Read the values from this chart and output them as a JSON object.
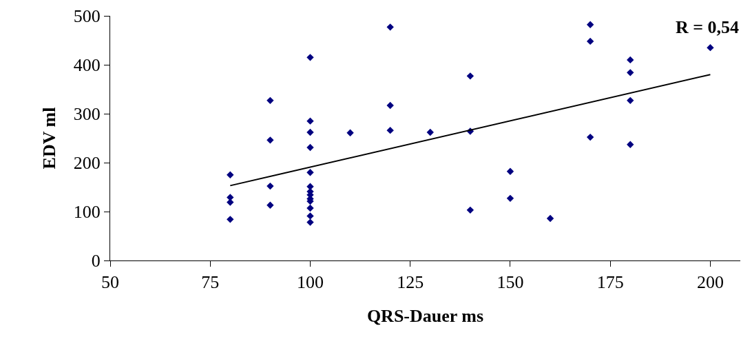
{
  "chart_data": {
    "type": "scatter",
    "xlabel": "QRS-Dauer ms",
    "ylabel": "EDV ml",
    "annotations": [
      "R = 0,54"
    ],
    "xlim": [
      50,
      207.5
    ],
    "xticks": [
      50,
      75,
      100,
      125,
      150,
      175,
      200
    ],
    "ylim": [
      0,
      500
    ],
    "yticks": [
      0,
      100,
      200,
      300,
      400,
      500
    ],
    "grid": false,
    "marker": "diamond",
    "series": [
      {
        "color": "#000080",
        "x": [
          80,
          80,
          80,
          80,
          90,
          90,
          90,
          90,
          100,
          100,
          100,
          100,
          100,
          100,
          100,
          100,
          100,
          100,
          100,
          100,
          100,
          110,
          120,
          120,
          120,
          130,
          140,
          140,
          140,
          150,
          150,
          160,
          170,
          170,
          170,
          180,
          180,
          180,
          180,
          200
        ],
        "values": [
          175,
          129,
          119,
          84,
          327,
          246,
          152,
          113,
          415,
          285,
          262,
          231,
          180,
          151,
          141,
          134,
          126,
          121,
          107,
          91,
          78,
          261,
          477,
          317,
          266,
          262,
          377,
          264,
          103,
          182,
          127,
          86,
          482,
          448,
          252,
          410,
          384,
          327,
          237,
          435
        ]
      },
      {
        "type": "line",
        "color": "#000000",
        "marker": "none",
        "line_style": "solid",
        "x": [
          80,
          200
        ],
        "values": [
          153,
          380
        ]
      }
    ]
  }
}
